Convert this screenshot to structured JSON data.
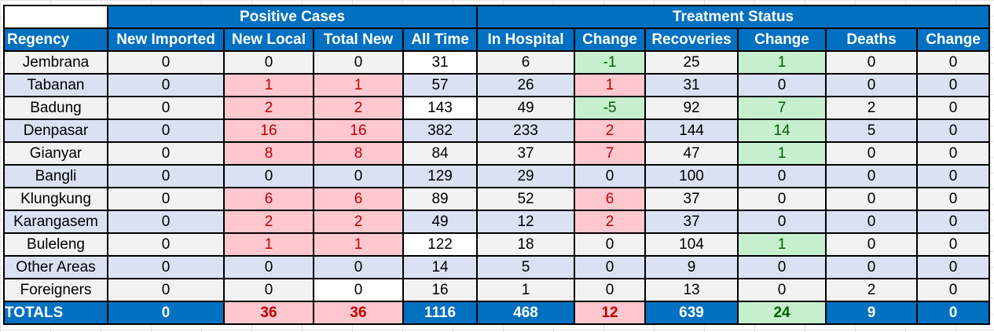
{
  "groups": {
    "positive": "Positive Cases",
    "treatment": "Treatment Status"
  },
  "headers": [
    "Regency",
    "New Imported",
    "New Local",
    "Total New",
    "All Time",
    "In Hospital",
    "Change",
    "Recoveries",
    "Change",
    "Deaths",
    "Change"
  ],
  "rows": [
    {
      "cells": [
        "Jembrana",
        "0",
        "0",
        "0",
        "31",
        "6",
        "-1",
        "25",
        "1",
        "0",
        "0"
      ],
      "hl": [
        "",
        "",
        "",
        "",
        "plain",
        "",
        "down",
        "",
        "down",
        "",
        ""
      ]
    },
    {
      "cells": [
        "Tabanan",
        "0",
        "1",
        "1",
        "57",
        "26",
        "1",
        "31",
        "0",
        "0",
        "0"
      ],
      "hl": [
        "",
        "",
        "up",
        "up",
        "",
        "",
        "up",
        "",
        "",
        "",
        ""
      ]
    },
    {
      "cells": [
        "Badung",
        "0",
        "2",
        "2",
        "143",
        "49",
        "-5",
        "92",
        "7",
        "2",
        "0"
      ],
      "hl": [
        "",
        "",
        "up",
        "up",
        "plain",
        "",
        "down",
        "",
        "down",
        "",
        ""
      ]
    },
    {
      "cells": [
        "Denpasar",
        "0",
        "16",
        "16",
        "382",
        "233",
        "2",
        "144",
        "14",
        "5",
        "0"
      ],
      "hl": [
        "",
        "",
        "up",
        "up",
        "",
        "",
        "up",
        "",
        "down",
        "",
        ""
      ]
    },
    {
      "cells": [
        "Gianyar",
        "0",
        "8",
        "8",
        "84",
        "37",
        "7",
        "47",
        "1",
        "0",
        "0"
      ],
      "hl": [
        "",
        "",
        "up",
        "up",
        "",
        "",
        "up",
        "",
        "down",
        "",
        ""
      ]
    },
    {
      "cells": [
        "Bangli",
        "0",
        "0",
        "0",
        "129",
        "29",
        "0",
        "100",
        "0",
        "0",
        "0"
      ],
      "hl": [
        "",
        "",
        "",
        "",
        "",
        "",
        "",
        "",
        "",
        "",
        ""
      ]
    },
    {
      "cells": [
        "Klungkung",
        "0",
        "6",
        "6",
        "89",
        "52",
        "6",
        "37",
        "0",
        "0",
        "0"
      ],
      "hl": [
        "",
        "",
        "up",
        "up",
        "",
        "",
        "up",
        "",
        "",
        "",
        ""
      ]
    },
    {
      "cells": [
        "Karangasem",
        "0",
        "2",
        "2",
        "49",
        "12",
        "2",
        "37",
        "0",
        "0",
        "0"
      ],
      "hl": [
        "",
        "",
        "up",
        "up",
        "",
        "",
        "up",
        "",
        "",
        "",
        ""
      ]
    },
    {
      "cells": [
        "Buleleng",
        "0",
        "1",
        "1",
        "122",
        "18",
        "0",
        "104",
        "1",
        "0",
        "0"
      ],
      "hl": [
        "",
        "",
        "up",
        "up",
        "plain",
        "",
        "",
        "",
        "down",
        "",
        ""
      ]
    },
    {
      "cells": [
        "Other Areas",
        "0",
        "0",
        "0",
        "14",
        "5",
        "0",
        "9",
        "0",
        "0",
        "0"
      ],
      "hl": [
        "",
        "",
        "",
        "",
        "",
        "",
        "",
        "",
        "",
        "",
        ""
      ]
    },
    {
      "cells": [
        "Foreigners",
        "0",
        "0",
        "0",
        "16",
        "1",
        "0",
        "13",
        "0",
        "2",
        "0"
      ],
      "hl": [
        "",
        "",
        "",
        "plain",
        "",
        "",
        "",
        "",
        "",
        "",
        ""
      ]
    }
  ],
  "totals": {
    "cells": [
      "TOTALS",
      "0",
      "36",
      "36",
      "1116",
      "468",
      "12",
      "639",
      "24",
      "9",
      "0"
    ],
    "hl": [
      "",
      "",
      "up",
      "up",
      "",
      "",
      "up",
      "",
      "down",
      "",
      ""
    ]
  },
  "colors": {
    "header_blue": "#0070c0",
    "increase_fill": "#ffc7ce",
    "increase_text": "#c00000",
    "decrease_fill": "#c6efce",
    "decrease_text": "#006100"
  }
}
